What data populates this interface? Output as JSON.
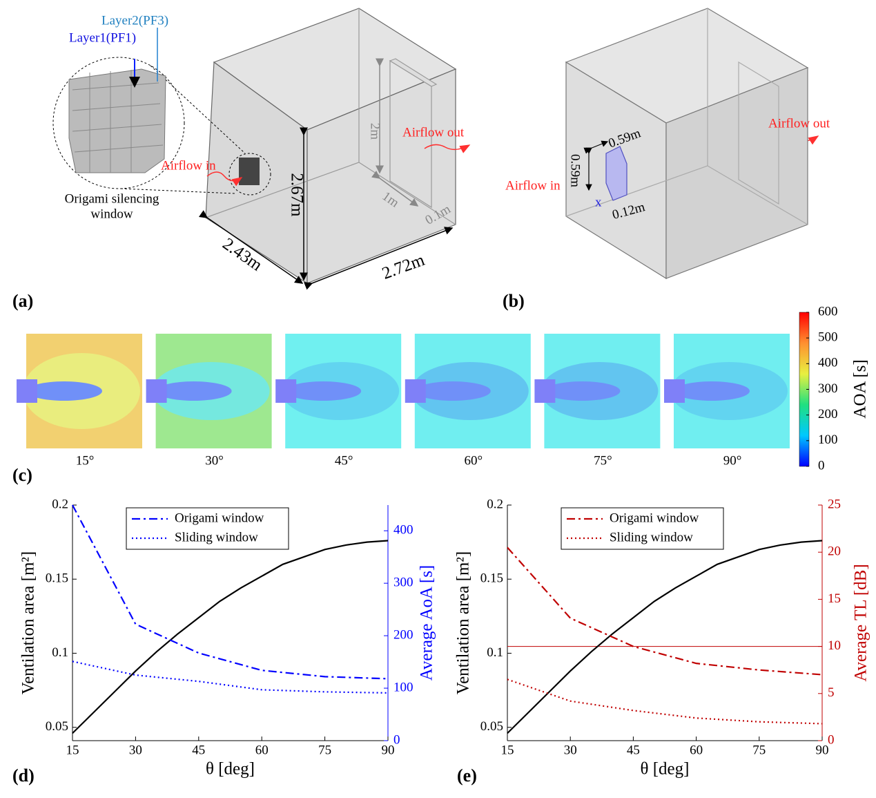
{
  "panels": {
    "a": {
      "label": "(a)",
      "layer2": "Layer2(PF3)",
      "layer1": "Layer1(PF1)",
      "window_caption": [
        "Origami silencing",
        "window"
      ],
      "airflow_in": "Airflow in",
      "airflow_out": "Airflow out",
      "door_height": "2m",
      "door_width": "1m",
      "door_depth": "0.1m",
      "room_height": "2.67m",
      "room_depth": "2.43m",
      "room_width": "2.72m"
    },
    "b": {
      "label": "(b)",
      "window_width": "0.59m",
      "window_height": "0.59m",
      "window_depth": "0.12m",
      "axis": "x",
      "airflow_in": "Airflow in",
      "airflow_out": "Airflow out"
    },
    "c": {
      "label": "(c)",
      "angles": [
        "15°",
        "30°",
        "45°",
        "60°",
        "75°",
        "90°"
      ],
      "colorbar": {
        "label": "AOA [s]",
        "lim": [
          0,
          600
        ],
        "ticks": [
          0,
          100,
          200,
          300,
          400,
          500,
          600
        ]
      }
    },
    "d": {
      "label": "(d)"
    },
    "e": {
      "label": "(e)"
    }
  },
  "chart_data": [
    {
      "type": "line",
      "xlabel": "θ  [deg]",
      "ylabel": "Ventilation area [m²]",
      "y2label": "Average AoA [s]",
      "xlim": [
        15,
        90
      ],
      "xticks": [
        15,
        30,
        45,
        60,
        75,
        90
      ],
      "ylim": [
        0.041,
        0.2
      ],
      "yticks": [
        0.05,
        0.1,
        0.15,
        0.2
      ],
      "y2lim": [
        0,
        449
      ],
      "y2ticks": [
        0,
        100,
        200,
        300,
        400
      ],
      "legend": "upper center",
      "series": [
        {
          "color": "#000000",
          "dash": "solid",
          "x": [
            15,
            20,
            25,
            30,
            35,
            40,
            45,
            50,
            55,
            60,
            65,
            70,
            75,
            80,
            85,
            90
          ],
          "values": [
            0.046,
            0.06,
            0.074,
            0.088,
            0.101,
            0.113,
            0.124,
            0.135,
            0.144,
            0.152,
            0.16,
            0.165,
            0.17,
            0.173,
            0.175,
            0.176
          ]
        },
        {
          "name": "Origami window",
          "color": "#0000ff",
          "dash": "dashdot",
          "axis": "y2",
          "x": [
            15,
            30,
            45,
            60,
            75,
            90
          ],
          "values": [
            449,
            222,
            167,
            134,
            122,
            118
          ]
        },
        {
          "name": "Sliding window",
          "color": "#0000ff",
          "dash": "dotted",
          "axis": "y2",
          "x": [
            15,
            30,
            45,
            60,
            75,
            90
          ],
          "values": [
            151,
            125,
            113,
            97,
            93,
            91
          ]
        }
      ]
    },
    {
      "type": "line",
      "xlabel": "θ  [deg]",
      "ylabel": "Ventilation area [m²]",
      "y2label": "Average TL [dB]",
      "xlim": [
        15,
        90
      ],
      "xticks": [
        15,
        30,
        45,
        60,
        75,
        90
      ],
      "ylim": [
        0.041,
        0.2
      ],
      "yticks": [
        0.05,
        0.1,
        0.15,
        0.2
      ],
      "y2lim": [
        0,
        25
      ],
      "y2ticks": [
        0,
        5,
        10,
        15,
        20,
        25
      ],
      "legend": "upper center",
      "y2_reference": 10,
      "series": [
        {
          "color": "#000000",
          "dash": "solid",
          "x": [
            15,
            20,
            25,
            30,
            35,
            40,
            45,
            50,
            55,
            60,
            65,
            70,
            75,
            80,
            85,
            90
          ],
          "values": [
            0.046,
            0.06,
            0.074,
            0.088,
            0.101,
            0.113,
            0.124,
            0.135,
            0.144,
            0.152,
            0.16,
            0.165,
            0.17,
            0.173,
            0.175,
            0.176
          ]
        },
        {
          "name": "Origami window",
          "color": "#c00000",
          "dash": "dashdot",
          "axis": "y2",
          "x": [
            15,
            30,
            45,
            60,
            75,
            90
          ],
          "values": [
            20.5,
            13,
            10,
            8.2,
            7.5,
            7
          ]
        },
        {
          "name": "Sliding window",
          "color": "#c00000",
          "dash": "dotted",
          "axis": "y2",
          "x": [
            15,
            30,
            45,
            60,
            75,
            90
          ],
          "values": [
            6.5,
            4.2,
            3.2,
            2.4,
            2,
            1.8
          ]
        }
      ]
    }
  ]
}
